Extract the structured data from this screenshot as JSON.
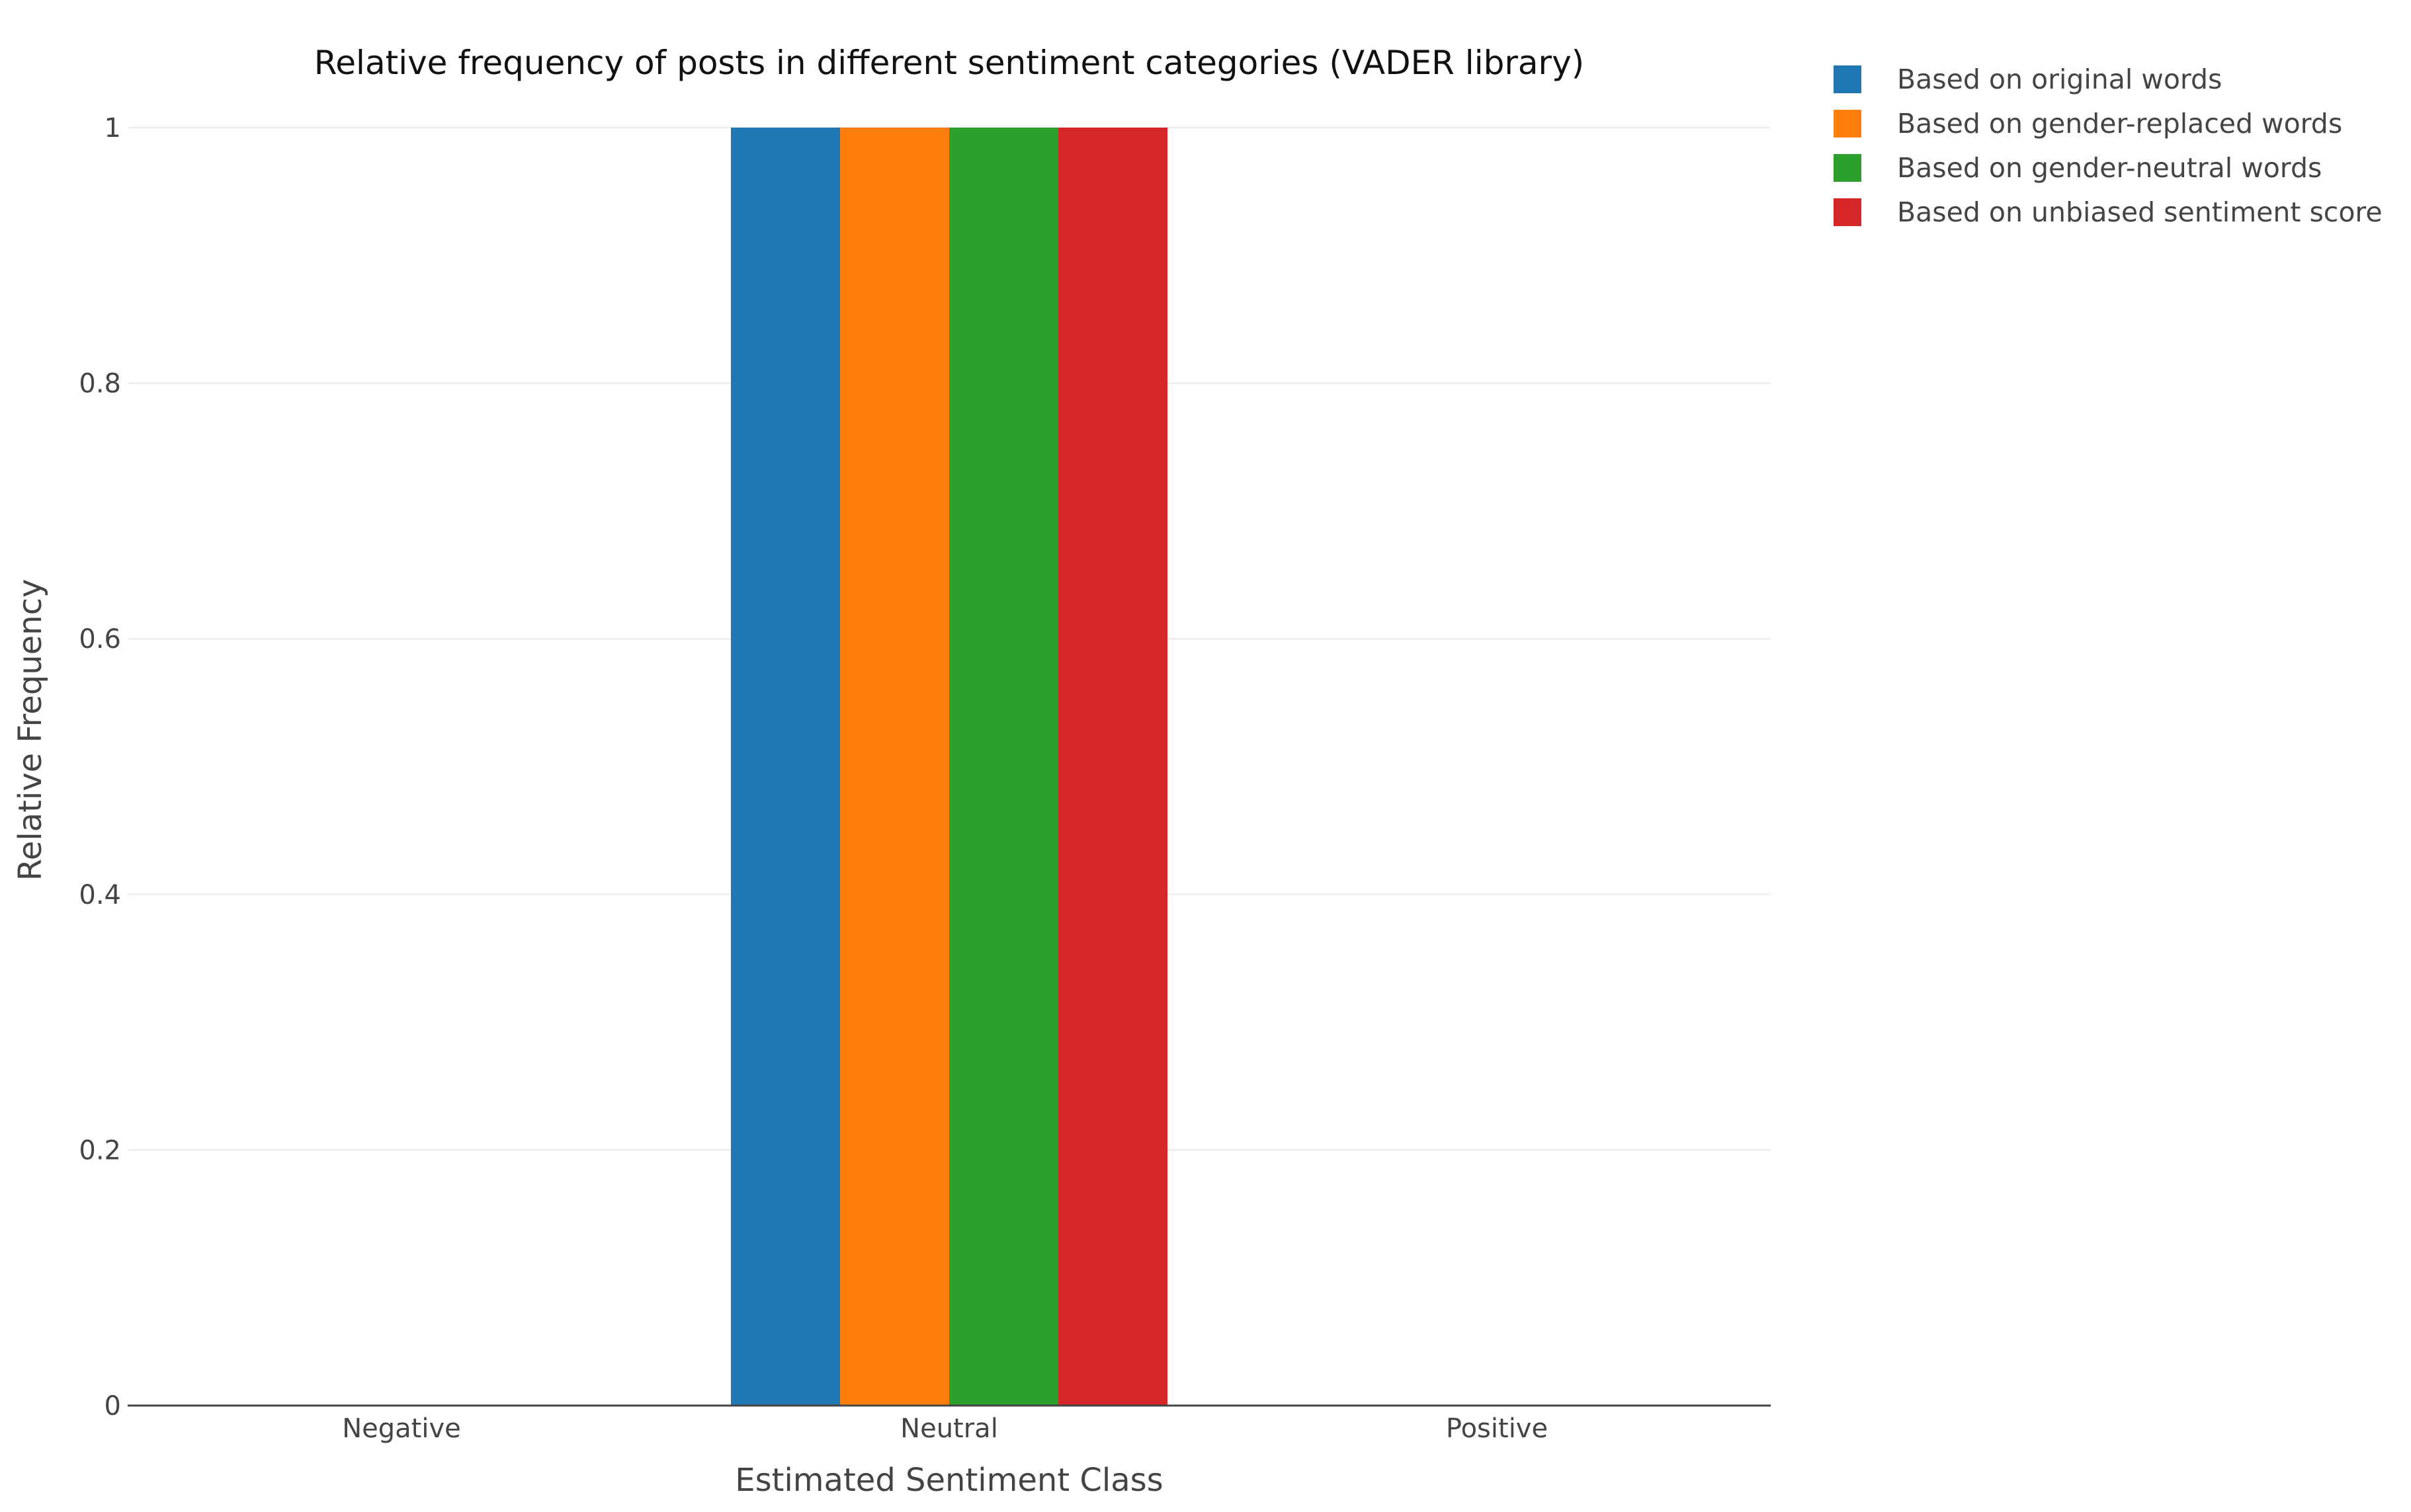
{
  "chart_data": {
    "type": "bar",
    "title": "Relative frequency of posts in different sentiment categories (VADER library)",
    "xlabel": "Estimated Sentiment Class",
    "ylabel": "Relative Frequency",
    "categories": [
      "Negative",
      "Neutral",
      "Positive"
    ],
    "ylim": [
      0,
      1
    ],
    "yticks": [
      0,
      0.2,
      0.4,
      0.6,
      0.8,
      1
    ],
    "ytick_labels": [
      "0",
      "0.2",
      "0.4",
      "0.6",
      "0.8",
      "1"
    ],
    "grid": true,
    "legend_position": "top-right, outside plot",
    "series": [
      {
        "name": "Based on original words",
        "color": "#1f77b4",
        "values": [
          0,
          1,
          0
        ]
      },
      {
        "name": "Based on gender-replaced words",
        "color": "#ff7f0e",
        "values": [
          0,
          1,
          0
        ]
      },
      {
        "name": "Based on gender-neutral words",
        "color": "#2ca02c",
        "values": [
          0,
          1,
          0
        ]
      },
      {
        "name": "Based on unbiased sentiment score",
        "color": "#d62728",
        "values": [
          0,
          1,
          0
        ]
      }
    ]
  }
}
